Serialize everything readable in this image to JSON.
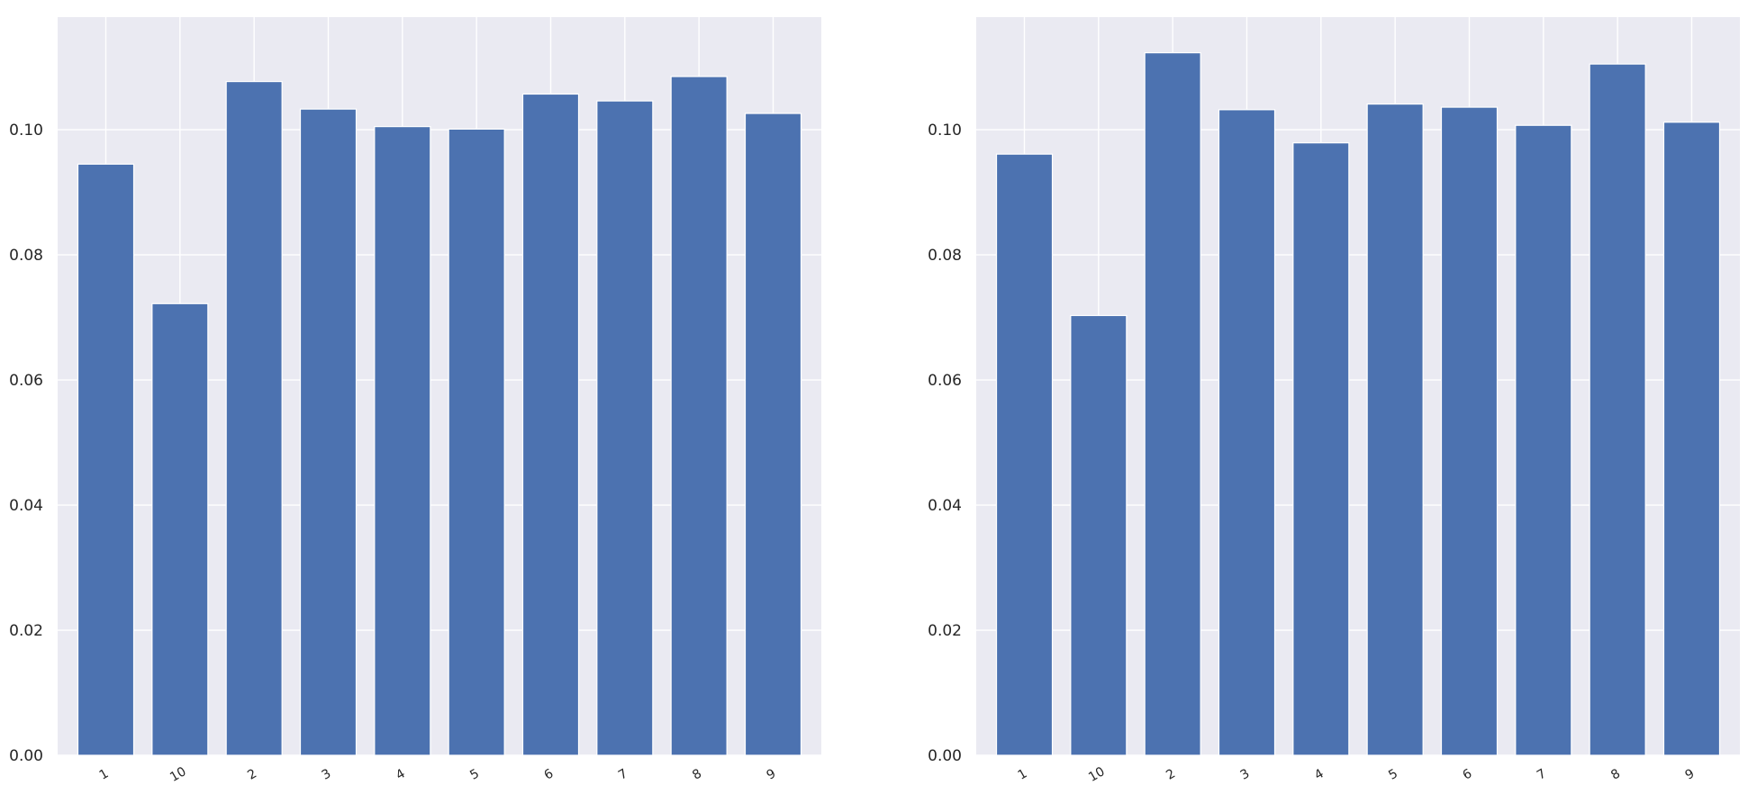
{
  "colors": {
    "bar": "#4c72b0",
    "plot_background": "#eaeaf2",
    "grid": "#ffffff",
    "text": "#262626"
  },
  "chart_data": [
    {
      "type": "bar",
      "title": "",
      "xlabel": "",
      "ylabel": "",
      "categories": [
        "1",
        "10",
        "2",
        "3",
        "4",
        "5",
        "6",
        "7",
        "8",
        "9"
      ],
      "values": [
        0.0945,
        0.0722,
        0.1077,
        0.1033,
        0.1005,
        0.1001,
        0.1057,
        0.1046,
        0.1085,
        0.1026
      ],
      "ylim": [
        0,
        0.118
      ],
      "yticks": [
        0,
        0.02,
        0.04,
        0.06,
        0.08,
        0.1
      ],
      "ytick_labels": [
        "0.00",
        "0.02",
        "0.04",
        "0.06",
        "0.08",
        "0.10"
      ],
      "grid": true,
      "legend": "none"
    },
    {
      "type": "bar",
      "title": "",
      "xlabel": "",
      "ylabel": "",
      "categories": [
        "1",
        "10",
        "2",
        "3",
        "4",
        "5",
        "6",
        "7",
        "8",
        "9"
      ],
      "values": [
        0.0961,
        0.0703,
        0.1123,
        0.1032,
        0.0979,
        0.1041,
        0.1036,
        0.1007,
        0.1105,
        0.1012
      ],
      "ylim": [
        0,
        0.118
      ],
      "yticks": [
        0,
        0.02,
        0.04,
        0.06,
        0.08,
        0.1
      ],
      "ytick_labels": [
        "0.00",
        "0.02",
        "0.04",
        "0.06",
        "0.08",
        "0.10"
      ],
      "grid": true,
      "legend": "none"
    }
  ]
}
